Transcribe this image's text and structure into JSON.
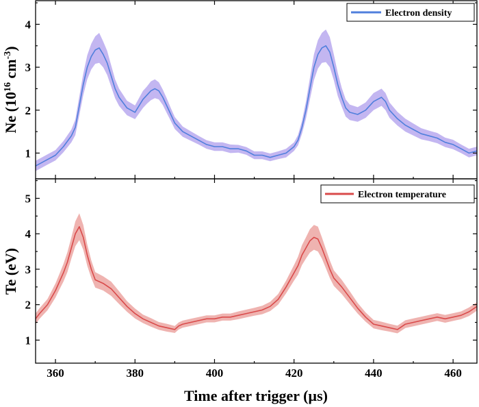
{
  "chart_data": [
    {
      "type": "line",
      "panel": "top",
      "ylabel_main": "Ne (10",
      "ylabel_exp1": "16",
      "ylabel_unit": " cm",
      "ylabel_exp2": "-3",
      "ylabel_close": ")",
      "ylim": [
        0.4,
        4.55
      ],
      "yticks": [
        "1",
        "2",
        "3",
        "4"
      ],
      "legend_position": "top-right",
      "series": [
        {
          "name": "Electron density",
          "color": "#4f7fdc",
          "band_color": "#b9a9ee",
          "x": [
            355,
            358,
            360,
            362,
            364,
            365,
            366,
            367,
            368,
            369,
            370,
            371,
            372,
            373,
            374,
            375,
            376,
            378,
            380,
            381,
            382,
            383,
            384,
            385,
            386,
            387,
            388,
            389,
            390,
            392,
            394,
            396,
            398,
            400,
            402,
            404,
            406,
            408,
            410,
            412,
            414,
            416,
            418,
            420,
            421,
            422,
            423,
            424,
            425,
            426,
            427,
            428,
            429,
            430,
            431,
            432,
            433,
            434,
            436,
            438,
            440,
            441,
            442,
            443,
            444,
            446,
            448,
            450,
            452,
            454,
            456,
            458,
            460,
            462,
            464,
            466
          ],
          "y": [
            0.7,
            0.85,
            0.95,
            1.15,
            1.4,
            1.6,
            2.1,
            2.6,
            3.0,
            3.25,
            3.4,
            3.45,
            3.3,
            3.1,
            2.8,
            2.5,
            2.3,
            2.05,
            1.95,
            2.1,
            2.25,
            2.35,
            2.45,
            2.5,
            2.45,
            2.3,
            2.1,
            1.9,
            1.7,
            1.5,
            1.4,
            1.3,
            1.2,
            1.15,
            1.15,
            1.1,
            1.1,
            1.05,
            0.95,
            0.95,
            0.9,
            0.95,
            1.0,
            1.15,
            1.3,
            1.6,
            2.0,
            2.5,
            3.0,
            3.3,
            3.45,
            3.5,
            3.35,
            3.0,
            2.6,
            2.3,
            2.05,
            1.95,
            1.9,
            2.0,
            2.2,
            2.25,
            2.3,
            2.2,
            2.0,
            1.8,
            1.65,
            1.55,
            1.45,
            1.4,
            1.35,
            1.25,
            1.2,
            1.1,
            1.0,
            1.05
          ],
          "band": [
            0.12,
            0.12,
            0.12,
            0.13,
            0.15,
            0.18,
            0.22,
            0.25,
            0.28,
            0.3,
            0.32,
            0.35,
            0.3,
            0.28,
            0.25,
            0.22,
            0.2,
            0.17,
            0.16,
            0.18,
            0.2,
            0.2,
            0.22,
            0.22,
            0.2,
            0.18,
            0.17,
            0.15,
            0.14,
            0.12,
            0.11,
            0.1,
            0.1,
            0.1,
            0.1,
            0.1,
            0.09,
            0.09,
            0.09,
            0.09,
            0.09,
            0.09,
            0.1,
            0.1,
            0.12,
            0.15,
            0.2,
            0.25,
            0.3,
            0.33,
            0.35,
            0.38,
            0.35,
            0.3,
            0.27,
            0.22,
            0.2,
            0.18,
            0.17,
            0.18,
            0.2,
            0.2,
            0.2,
            0.2,
            0.18,
            0.16,
            0.15,
            0.14,
            0.13,
            0.12,
            0.12,
            0.11,
            0.11,
            0.1,
            0.1,
            0.1
          ]
        }
      ]
    },
    {
      "type": "line",
      "panel": "bottom",
      "ylabel": "Te (eV)",
      "xlabel": "Time after trigger (µs)",
      "xlim": [
        355,
        466
      ],
      "xticks": [
        "360",
        "380",
        "400",
        "420",
        "440",
        "460"
      ],
      "ylim": [
        0.35,
        5.55
      ],
      "yticks": [
        "1",
        "2",
        "3",
        "4",
        "5"
      ],
      "legend_position": "top-right",
      "series": [
        {
          "name": "Electron temperature",
          "color": "#d94a4a",
          "band_color": "#eca6a2",
          "x": [
            355,
            356,
            358,
            360,
            361,
            362,
            363,
            364,
            365,
            366,
            367,
            368,
            369,
            370,
            372,
            374,
            376,
            378,
            380,
            382,
            384,
            386,
            388,
            390,
            391,
            392,
            394,
            396,
            398,
            400,
            402,
            404,
            406,
            408,
            410,
            412,
            414,
            416,
            418,
            420,
            421,
            422,
            423,
            424,
            425,
            426,
            427,
            428,
            429,
            430,
            432,
            434,
            436,
            438,
            440,
            442,
            444,
            446,
            448,
            450,
            452,
            454,
            456,
            458,
            460,
            462,
            464,
            466
          ],
          "y": [
            1.6,
            1.75,
            2.0,
            2.4,
            2.65,
            2.9,
            3.2,
            3.6,
            4.0,
            4.2,
            3.9,
            3.4,
            3.0,
            2.7,
            2.6,
            2.45,
            2.2,
            1.95,
            1.75,
            1.6,
            1.5,
            1.4,
            1.35,
            1.3,
            1.4,
            1.45,
            1.5,
            1.55,
            1.6,
            1.6,
            1.65,
            1.65,
            1.7,
            1.75,
            1.8,
            1.85,
            1.95,
            2.15,
            2.5,
            2.9,
            3.1,
            3.4,
            3.6,
            3.8,
            3.9,
            3.85,
            3.6,
            3.3,
            3.0,
            2.75,
            2.5,
            2.2,
            1.9,
            1.65,
            1.45,
            1.4,
            1.35,
            1.3,
            1.45,
            1.5,
            1.55,
            1.6,
            1.65,
            1.6,
            1.65,
            1.7,
            1.8,
            1.95
          ],
          "band": [
            0.15,
            0.15,
            0.16,
            0.2,
            0.22,
            0.25,
            0.28,
            0.3,
            0.35,
            0.38,
            0.35,
            0.3,
            0.25,
            0.22,
            0.2,
            0.2,
            0.18,
            0.15,
            0.14,
            0.12,
            0.12,
            0.11,
            0.11,
            0.1,
            0.1,
            0.1,
            0.1,
            0.1,
            0.1,
            0.1,
            0.1,
            0.1,
            0.11,
            0.11,
            0.11,
            0.12,
            0.13,
            0.15,
            0.18,
            0.22,
            0.25,
            0.28,
            0.3,
            0.33,
            0.35,
            0.35,
            0.3,
            0.27,
            0.25,
            0.22,
            0.2,
            0.18,
            0.15,
            0.13,
            0.12,
            0.12,
            0.11,
            0.11,
            0.11,
            0.11,
            0.11,
            0.11,
            0.11,
            0.11,
            0.11,
            0.11,
            0.12,
            0.12
          ]
        }
      ]
    }
  ]
}
